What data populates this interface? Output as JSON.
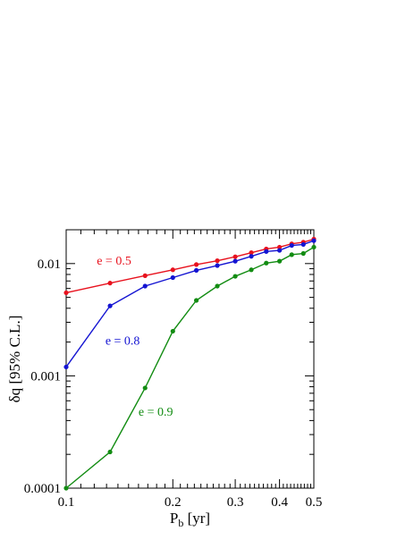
{
  "chart_data": {
    "type": "line",
    "xlabel": "P_b [yr]",
    "xlabel_main": "P",
    "xlabel_sub": "b",
    "xlabel_rest": " [yr]",
    "ylabel": "δq [95% C.L.]",
    "xscale": "log",
    "yscale": "log",
    "xlim": [
      0.1,
      0.5
    ],
    "ylim": [
      0.0001,
      0.02
    ],
    "grid": false,
    "x_ticks": [
      {
        "value": 0.1,
        "label": "0.1"
      },
      {
        "value": 0.2,
        "label": "0.2"
      },
      {
        "value": 0.3,
        "label": "0.3"
      },
      {
        "value": 0.4,
        "label": "0.4"
      },
      {
        "value": 0.5,
        "label": "0.5"
      }
    ],
    "y_ticks": [
      {
        "value": 0.0001,
        "label": "0.0001"
      },
      {
        "value": 0.001,
        "label": "0.001"
      },
      {
        "value": 0.01,
        "label": "0.01"
      }
    ],
    "series": [
      {
        "name": "e = 0.5",
        "color": "#e8121e",
        "label_pos": {
          "x": 0.122,
          "y": 0.0098
        },
        "x": [
          0.1,
          0.133,
          0.167,
          0.2,
          0.233,
          0.267,
          0.3,
          0.333,
          0.367,
          0.4,
          0.433,
          0.467,
          0.5
        ],
        "y": [
          0.0055,
          0.0067,
          0.0078,
          0.0088,
          0.0098,
          0.0106,
          0.0115,
          0.0125,
          0.0135,
          0.014,
          0.015,
          0.0155,
          0.0165
        ]
      },
      {
        "name": "e = 0.8",
        "color": "#1414d2",
        "label_pos": {
          "x": 0.129,
          "y": 0.0019
        },
        "x": [
          0.1,
          0.133,
          0.167,
          0.2,
          0.233,
          0.267,
          0.3,
          0.333,
          0.367,
          0.4,
          0.433,
          0.467,
          0.5
        ],
        "y": [
          0.0012,
          0.0042,
          0.0063,
          0.0075,
          0.0087,
          0.0096,
          0.0105,
          0.0116,
          0.0128,
          0.0131,
          0.0145,
          0.0148,
          0.016
        ]
      },
      {
        "name": "e = 0.9",
        "color": "#128c12",
        "label_pos": {
          "x": 0.16,
          "y": 0.00044
        },
        "x": [
          0.1,
          0.133,
          0.167,
          0.2,
          0.233,
          0.267,
          0.3,
          0.333,
          0.367,
          0.4,
          0.433,
          0.467,
          0.5
        ],
        "y": [
          0.0001,
          0.00021,
          0.00078,
          0.0025,
          0.0047,
          0.0063,
          0.0077,
          0.0088,
          0.0101,
          0.0105,
          0.012,
          0.0123,
          0.014
        ]
      }
    ]
  }
}
